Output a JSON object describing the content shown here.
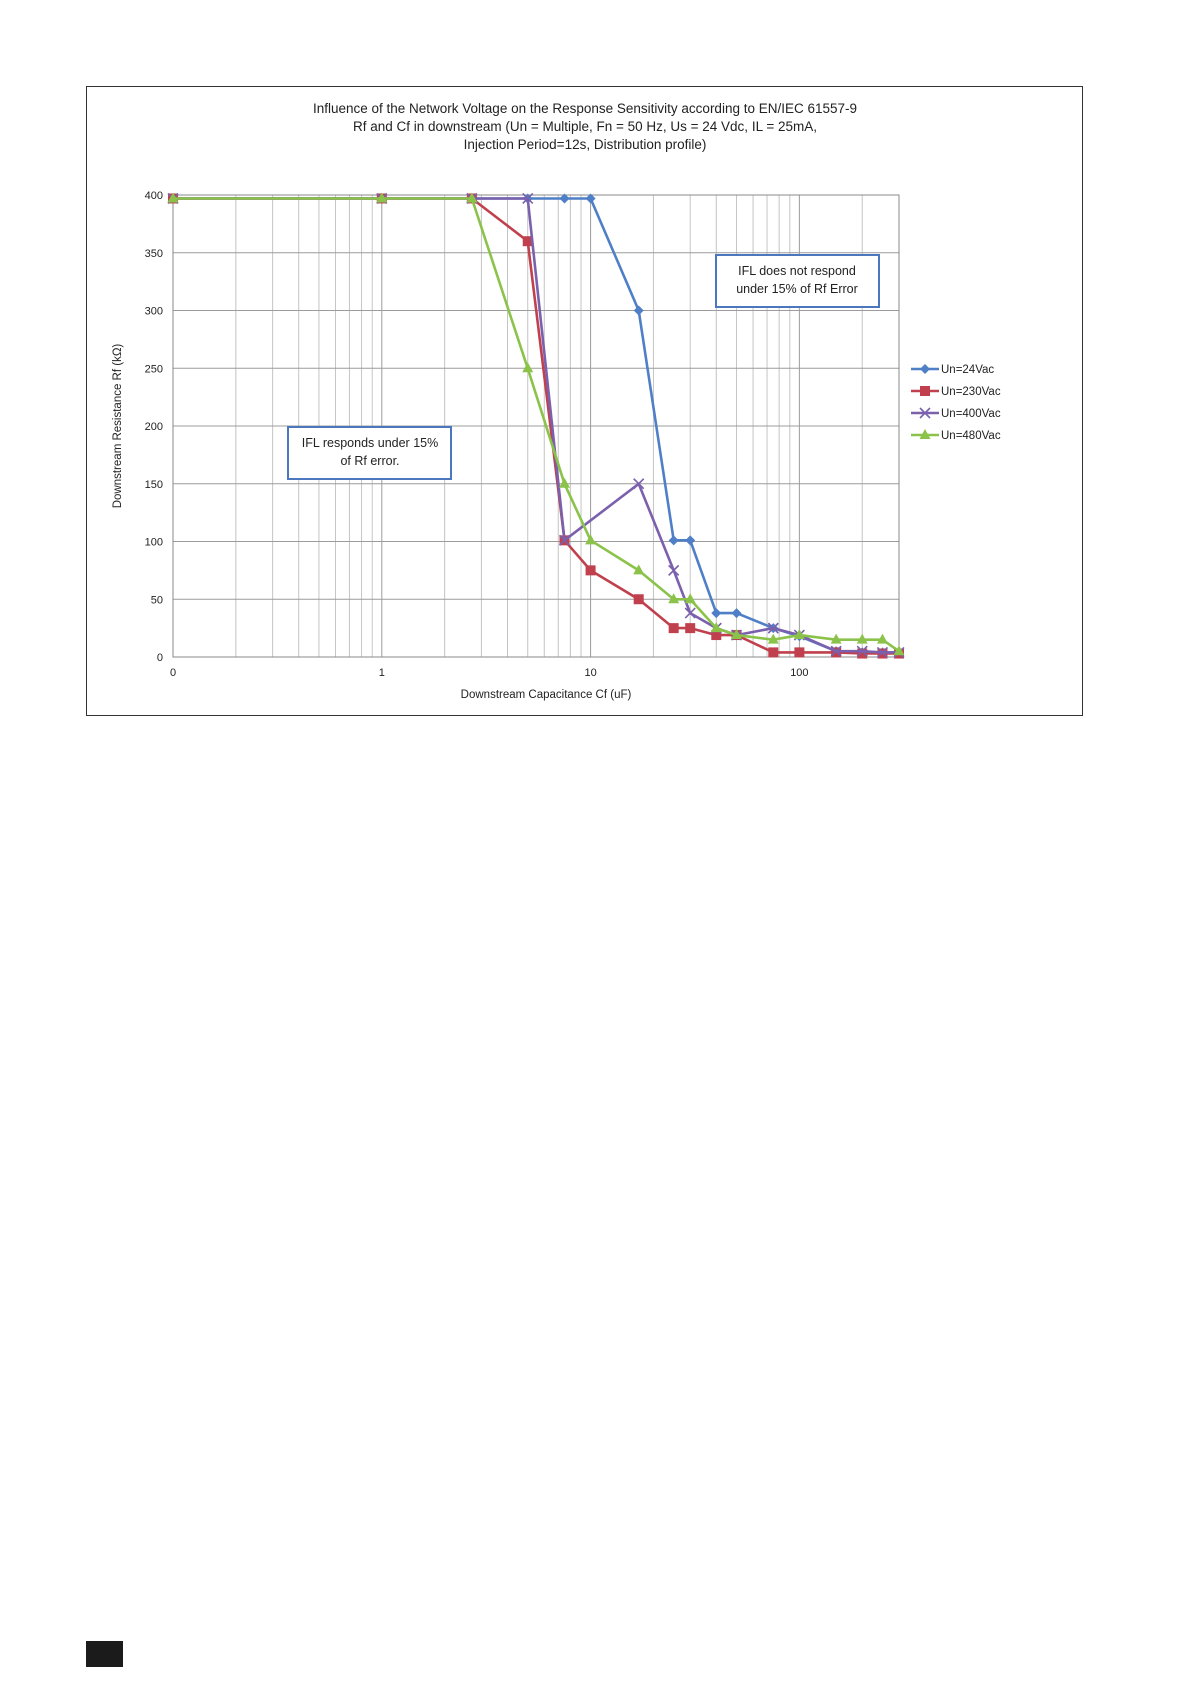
{
  "chart_data": {
    "type": "line",
    "title": [
      "Influence of the Network Voltage on the Response Sensitivity according to EN/IEC 61557-9",
      "Rf and Cf  in downstream (Un = Multiple, Fn = 50 Hz, Us = 24 Vdc, IL = 25mA,",
      "Injection Period=12s,  Distribution profile)"
    ],
    "xlabel": "Downstream Capacitance Cf (uF)",
    "ylabel": "Downstream Resistance Rf (kΩ)",
    "x_scale": "log",
    "x_ticks": [
      {
        "value": 0.1,
        "label": "0"
      },
      {
        "value": 1,
        "label": "1"
      },
      {
        "value": 10,
        "label": "10"
      },
      {
        "value": 100,
        "label": "100"
      }
    ],
    "xlim": [
      0.1,
      300
    ],
    "ylim": [
      0,
      400
    ],
    "y_ticks": [
      0,
      50,
      100,
      150,
      200,
      250,
      300,
      350,
      400
    ],
    "grid": true,
    "legend_position": "right",
    "annotations": [
      [
        "IFL does not respond",
        "under 15% of Rf Error"
      ],
      [
        "IFL responds under 15%",
        "of Rf error."
      ]
    ],
    "series": [
      {
        "name": "Un=24Vac",
        "color": "#4f7fc6",
        "marker": "diamond",
        "x": [
          0.1,
          1,
          2.7,
          5,
          7.5,
          10,
          17,
          25,
          30,
          40,
          50,
          75,
          100,
          150,
          200,
          250,
          300
        ],
        "y": [
          397,
          397,
          397,
          397,
          397,
          397,
          300,
          101,
          101,
          38,
          38,
          25,
          18,
          5,
          4,
          4,
          4
        ]
      },
      {
        "name": "Un=230Vac",
        "color": "#c0414d",
        "marker": "square",
        "x": [
          0.1,
          1,
          2.7,
          5,
          7.5,
          10,
          17,
          25,
          30,
          40,
          50,
          75,
          100,
          150,
          200,
          250,
          300
        ],
        "y": [
          397,
          397,
          397,
          360,
          101,
          75,
          50,
          25,
          25,
          19,
          19,
          4,
          4,
          4,
          3,
          3,
          3
        ]
      },
      {
        "name": "Un=400Vac",
        "color": "#7a60ad",
        "marker": "x",
        "x": [
          0.1,
          1,
          2.7,
          5,
          7.5,
          17,
          25,
          30,
          40,
          50,
          75,
          100,
          150,
          200,
          250,
          300
        ],
        "y": [
          397,
          397,
          397,
          397,
          101,
          150,
          75,
          38,
          25,
          19,
          25,
          19,
          5,
          5,
          4,
          4
        ]
      },
      {
        "name": "Un=480Vac",
        "color": "#8bc34a",
        "marker": "triangle",
        "x": [
          0.1,
          1,
          2.7,
          5,
          7.5,
          10,
          17,
          25,
          30,
          40,
          50,
          75,
          100,
          150,
          200,
          250,
          300
        ],
        "y": [
          397,
          397,
          397,
          250,
          150,
          101,
          75,
          50,
          50,
          25,
          19,
          15,
          19,
          15,
          15,
          15,
          5
        ]
      }
    ]
  }
}
